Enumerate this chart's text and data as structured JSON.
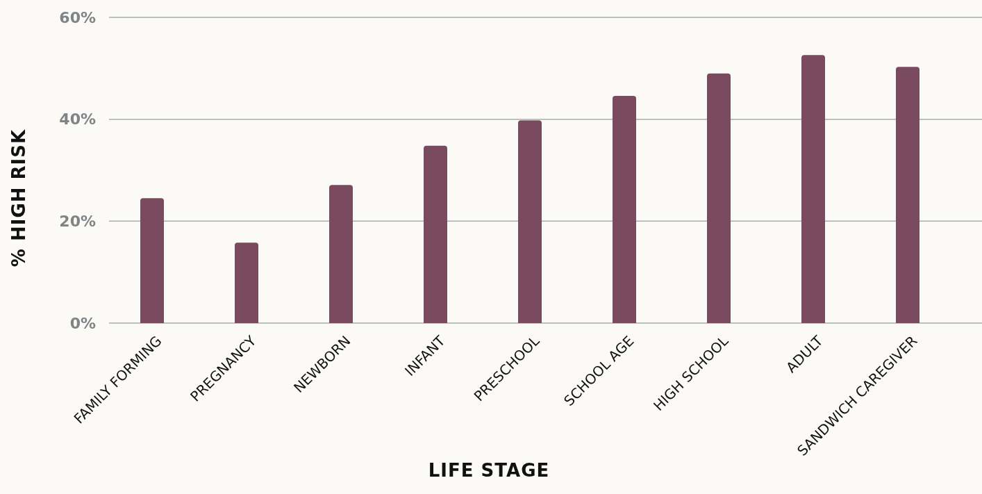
{
  "chart_data": {
    "type": "bar",
    "xlabel": "LIFE STAGE",
    "ylabel": "% HIGH RISK",
    "categories": [
      "FAMILY FORMING",
      "PREGNANCY",
      "NEWBORN",
      "INFANT",
      "PRESCHOOL",
      "SCHOOL AGE",
      "HIGH SCHOOL",
      "ADULT",
      "SANDWICH CAREGIVER"
    ],
    "values": [
      24.5,
      15.8,
      27.1,
      34.8,
      39.8,
      44.6,
      49.0,
      52.6,
      50.3
    ],
    "color": "#7a4a5e",
    "ylim": [
      0,
      60
    ],
    "yticks": [
      {
        "value": 0,
        "label": "0%"
      },
      {
        "value": 20,
        "label": "20%"
      },
      {
        "value": 40,
        "label": "40%"
      },
      {
        "value": 60,
        "label": "60%"
      }
    ],
    "grid": "y"
  }
}
